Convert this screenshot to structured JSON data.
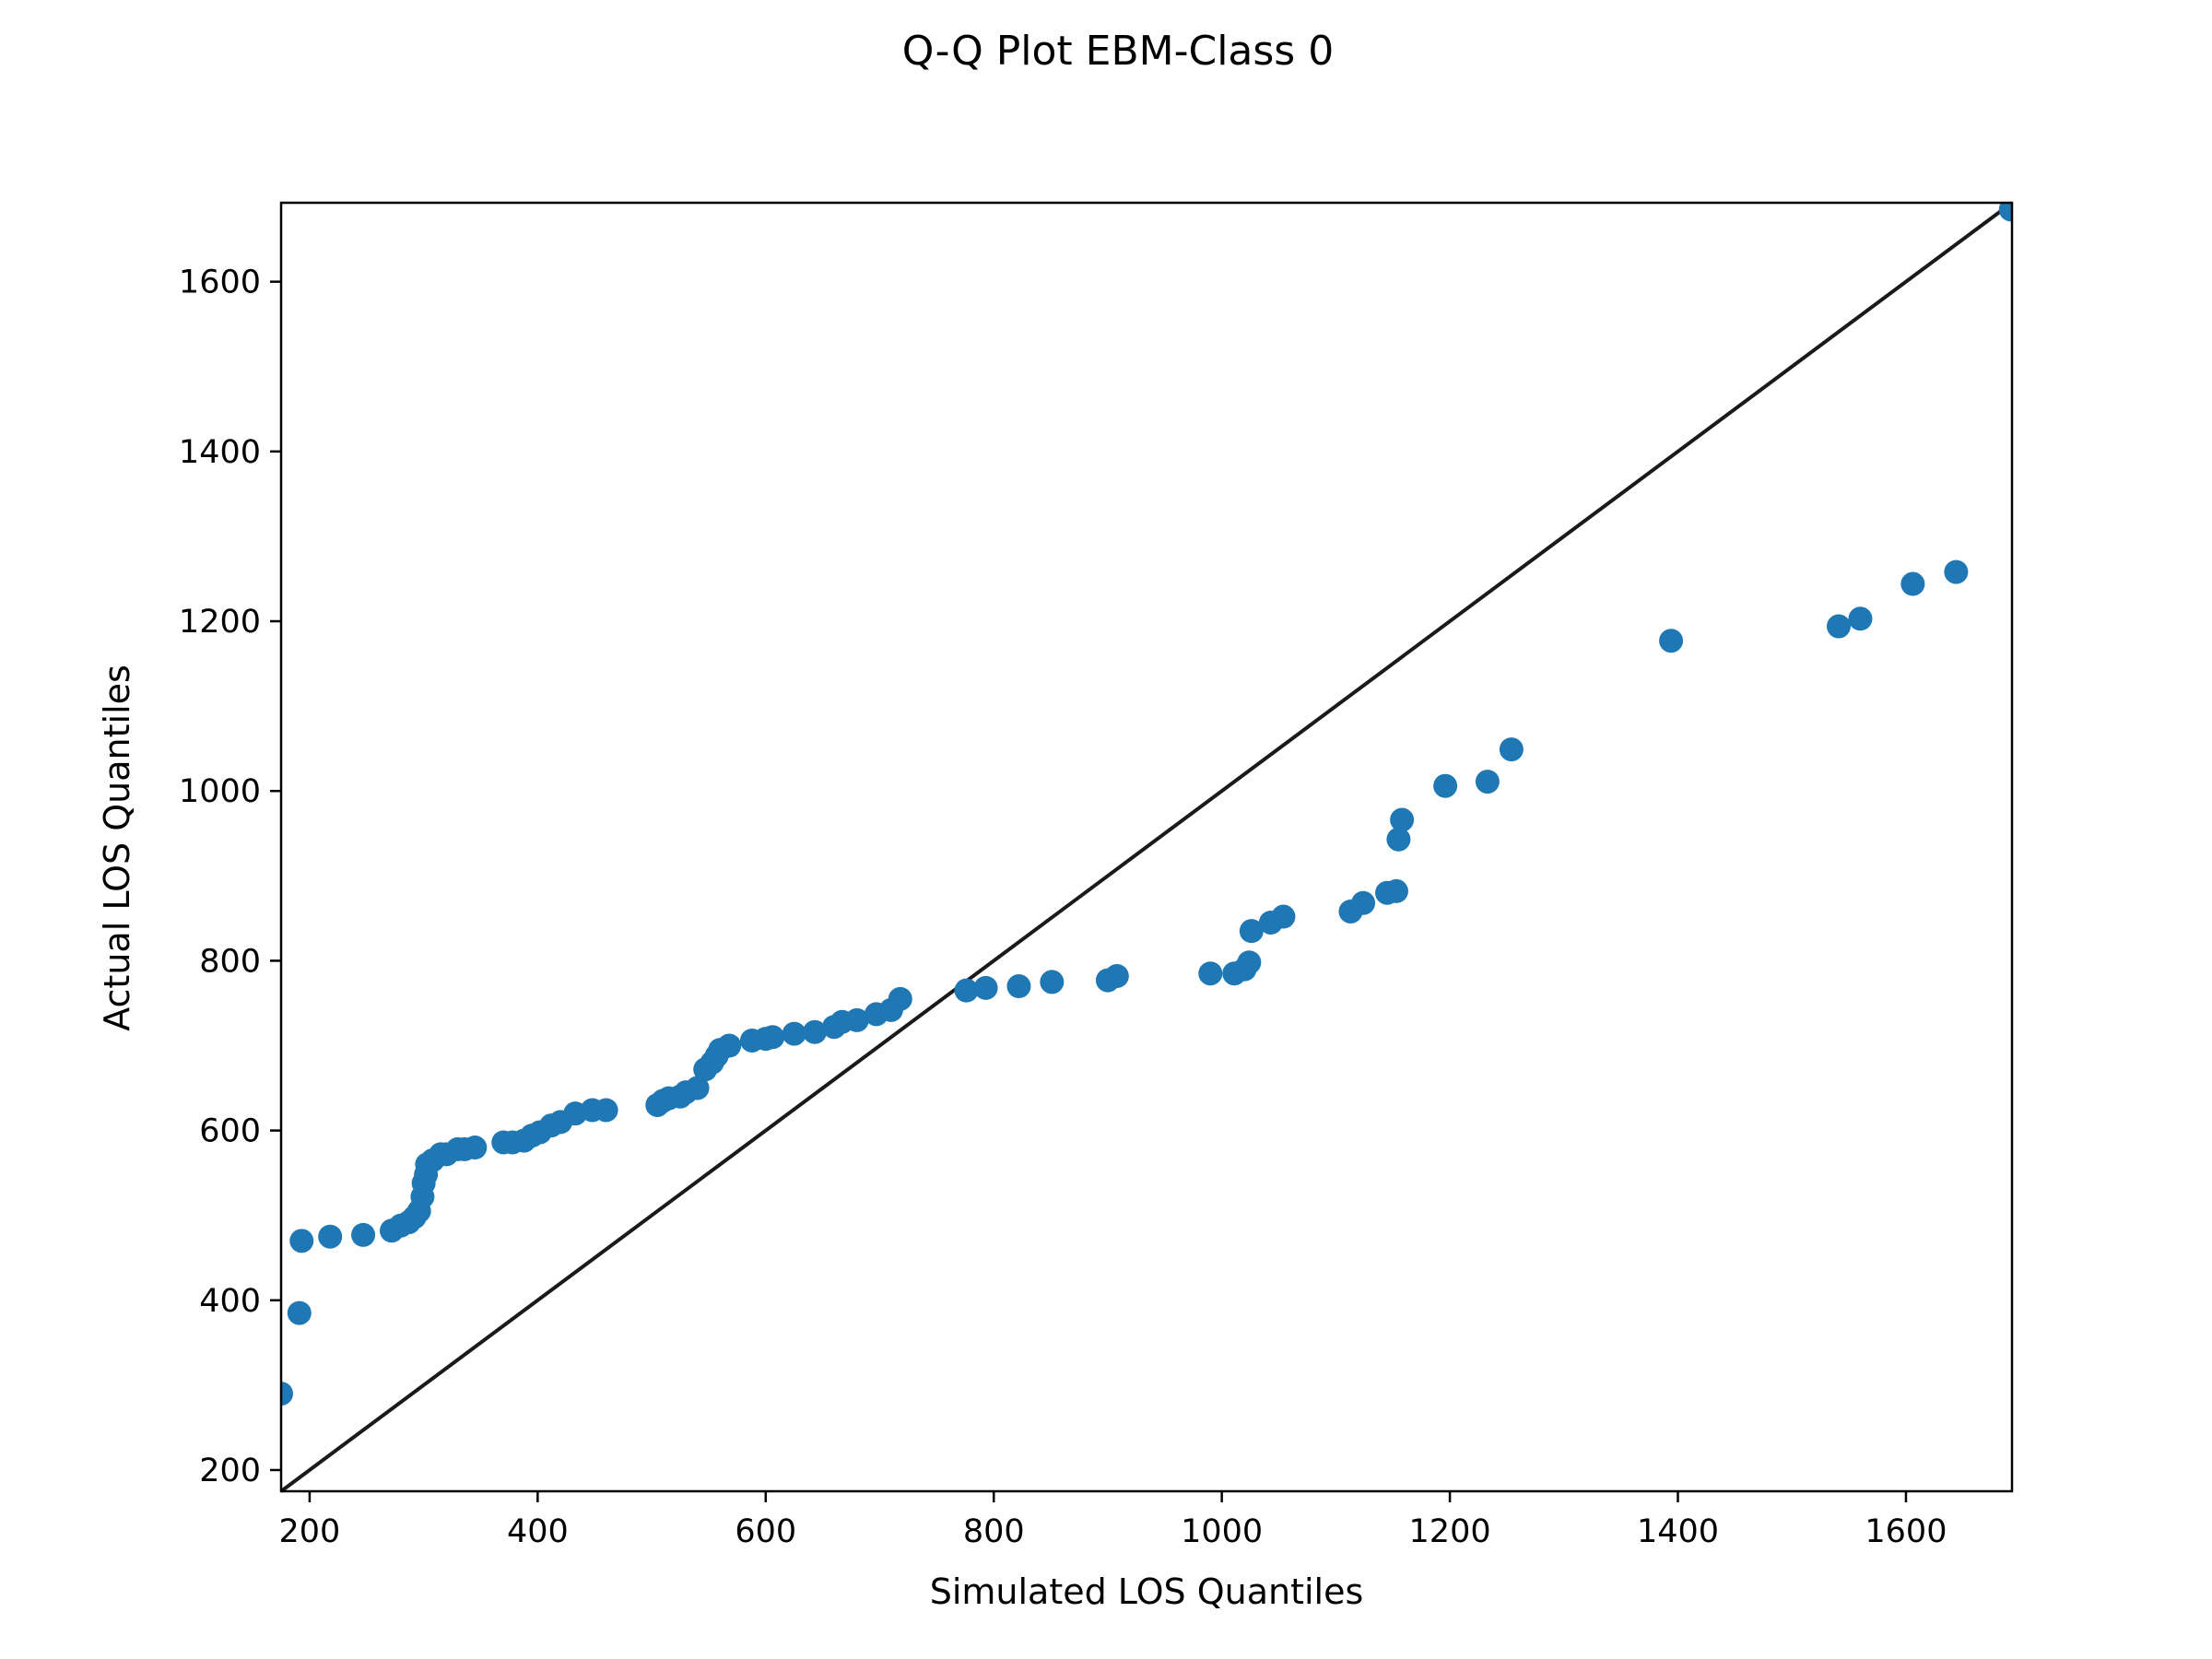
{
  "chart_data": {
    "type": "scatter",
    "title": "Q-Q Plot EBM-Class 0",
    "xlabel": "Simulated LOS Quantiles",
    "ylabel": "Actual LOS Quantiles",
    "xlim": [
      175,
      1693
    ],
    "ylim": [
      175,
      1693
    ],
    "xticks": [
      200,
      400,
      600,
      800,
      1000,
      1200,
      1400,
      1600
    ],
    "yticks": [
      200,
      400,
      600,
      800,
      1000,
      1200,
      1400,
      1600
    ],
    "grid": false,
    "colors": {
      "points": "#1f77b4",
      "reference_line": "#1a1a1a",
      "frame": "#000000"
    },
    "reference_line": {
      "from": [
        175,
        175
      ],
      "to": [
        1693,
        1693
      ]
    },
    "series": [
      {
        "x": [
          175,
          191,
          193,
          218,
          247,
          272,
          280,
          287,
          292,
          296,
          299,
          300,
          302,
          303,
          308,
          315,
          320,
          330,
          336,
          345,
          370,
          378,
          388,
          395,
          402,
          412,
          420,
          433,
          448,
          460,
          505,
          510,
          515,
          525,
          530,
          540,
          547,
          553,
          557,
          560,
          568,
          588,
          600,
          606,
          625,
          643,
          660,
          667,
          680,
          697,
          710,
          718,
          776,
          793,
          822,
          851,
          900,
          908,
          990,
          1011,
          1020,
          1024,
          1026,
          1043,
          1054,
          1113,
          1124,
          1145,
          1153,
          1155,
          1158,
          1196,
          1233,
          1254,
          1394,
          1541,
          1560,
          1606,
          1644,
          1692
        ],
        "y": [
          290,
          385,
          470,
          475,
          477,
          482,
          488,
          492,
          498,
          505,
          522,
          538,
          548,
          560,
          565,
          572,
          572,
          578,
          578,
          580,
          586,
          586,
          588,
          594,
          598,
          606,
          610,
          620,
          624,
          624,
          630,
          635,
          638,
          640,
          645,
          650,
          672,
          680,
          688,
          695,
          700,
          706,
          708,
          710,
          714,
          716,
          722,
          728,
          730,
          737,
          742,
          755,
          765,
          768,
          770,
          775,
          777,
          782,
          785,
          785,
          790,
          798,
          835,
          845,
          852,
          858,
          868,
          880,
          882,
          943,
          966,
          1006,
          1011,
          1049,
          1177,
          1194,
          1203,
          1244,
          1258,
          1685
        ]
      }
    ]
  }
}
